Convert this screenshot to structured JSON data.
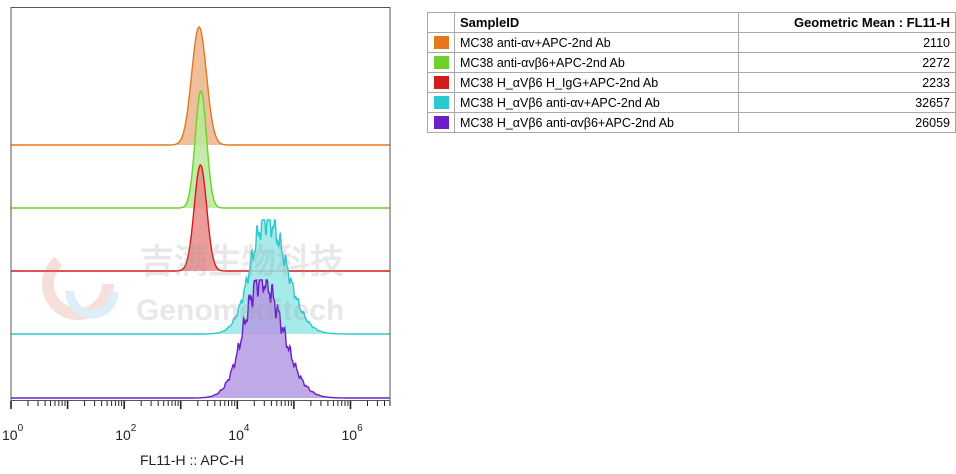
{
  "chart_data": {
    "type": "area",
    "subtype": "staggered-histogram-overlay",
    "xlabel": "FL11-H :: APC-H",
    "ylabel": "",
    "x_scale": "log10",
    "xlim": [
      1,
      5000000
    ],
    "x_ticks": [
      {
        "base": "10",
        "exp": "0",
        "value": 1
      },
      {
        "base": "10",
        "exp": "2",
        "value": 100
      },
      {
        "base": "10",
        "exp": "4",
        "value": 10000
      },
      {
        "base": "10",
        "exp": "6",
        "value": 1000000
      }
    ],
    "series": [
      {
        "name": "MC38 anti-αv+APC-2nd Ab",
        "color": "#e3781e",
        "fill": "#eab48a",
        "geo_mean": 2110,
        "spread": 0.13
      },
      {
        "name": "MC38 anti-αvβ6+APC-2nd Ab",
        "color": "#6cd12a",
        "fill": "#b8e99a",
        "geo_mean": 2272,
        "spread": 0.1
      },
      {
        "name": "MC38 H_αVβ6 H_IgG+APC-2nd Ab",
        "color": "#d31b1b",
        "fill": "#ea8a8a",
        "geo_mean": 2233,
        "spread": 0.11
      },
      {
        "name": "MC38 H_αVβ6 anti-αv+APC-2nd Ab",
        "color": "#29c9cf",
        "fill": "#97e6e6",
        "geo_mean": 32657,
        "spread": 0.28
      },
      {
        "name": "MC38 H_αVβ6 anti-αvβ6+APC-2nd Ab",
        "color": "#6c1fc9",
        "fill": "#b59ae3",
        "geo_mean": 26059,
        "spread": 0.3
      }
    ]
  },
  "table": {
    "headers": [
      "SampleID",
      "Geometric Mean : FL11-H"
    ],
    "rows": [
      {
        "sample": "MC38 anti-αv+APC-2nd Ab",
        "value": "2110",
        "color": "#e3781e"
      },
      {
        "sample": "MC38 anti-αvβ6+APC-2nd Ab",
        "value": "2272",
        "color": "#6cd12a"
      },
      {
        "sample": "MC38 H_αVβ6 H_IgG+APC-2nd Ab",
        "value": "2233",
        "color": "#d31b1b"
      },
      {
        "sample": "MC38 H_αVβ6 anti-αv+APC-2nd Ab",
        "value": "32657",
        "color": "#29c9cf"
      },
      {
        "sample": "MC38 H_αVβ6 anti-αvβ6+APC-2nd Ab",
        "value": "26059",
        "color": "#6c1fc9"
      }
    ]
  },
  "watermark": {
    "cn": "吉满生物科技",
    "en": "Genomeditech"
  }
}
